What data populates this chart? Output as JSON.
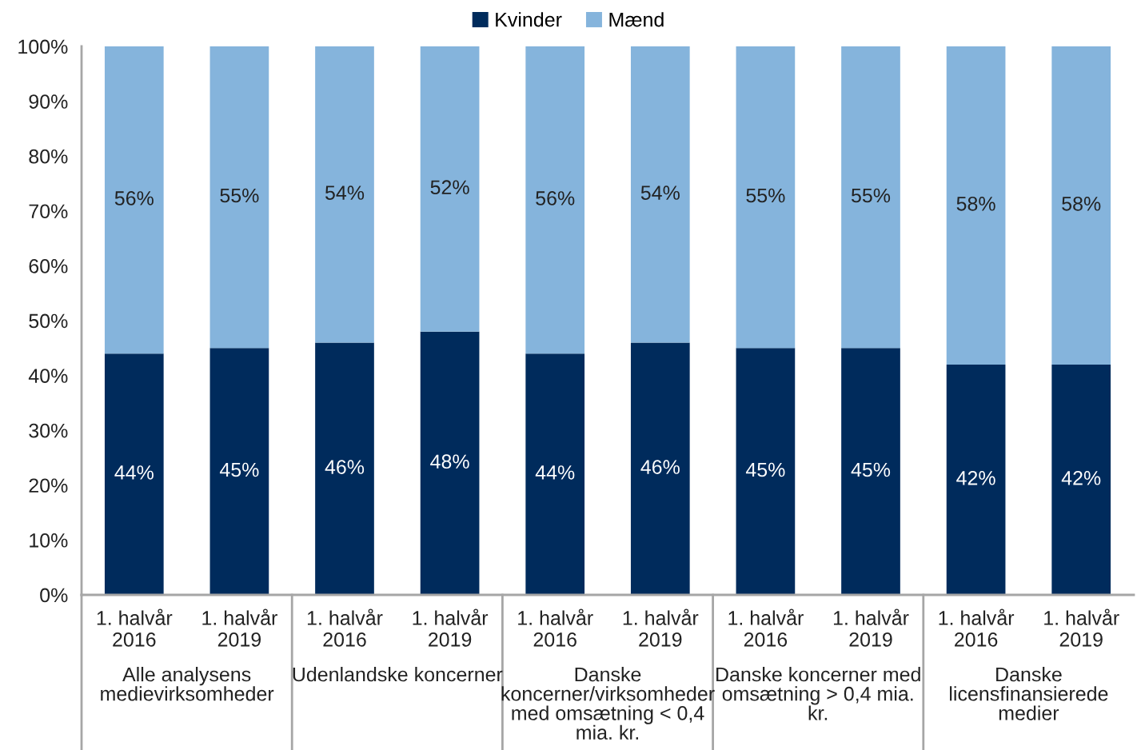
{
  "chart_data": {
    "type": "bar",
    "stacked": true,
    "categories": [
      "1. halvår\n2016",
      "1. halvår\n2019",
      "1. halvår\n2016",
      "1. halvår\n2019",
      "1. halvår\n2016",
      "1. halvår\n2019",
      "1. halvår\n2016",
      "1. halvår\n2019",
      "1. halvår\n2016",
      "1. halvår\n2019"
    ],
    "series": [
      {
        "name": "Kvinder",
        "color": "#002b5c",
        "values": [
          44,
          45,
          46,
          48,
          44,
          46,
          45,
          45,
          42,
          42
        ],
        "value_labels": [
          "44%",
          "45%",
          "46%",
          "48%",
          "44%",
          "46%",
          "45%",
          "45%",
          "42%",
          "42%"
        ]
      },
      {
        "name": "Mænd",
        "color": "#85b4dc",
        "values": [
          56,
          55,
          54,
          52,
          56,
          54,
          55,
          55,
          58,
          58
        ],
        "value_labels": [
          "56%",
          "55%",
          "54%",
          "52%",
          "56%",
          "54%",
          "55%",
          "55%",
          "58%",
          "58%"
        ]
      }
    ],
    "ylim": [
      0,
      100
    ],
    "yticks": [
      {
        "value": 0,
        "label": "0%"
      },
      {
        "value": 10,
        "label": "10%"
      },
      {
        "value": 20,
        "label": "20%"
      },
      {
        "value": 30,
        "label": "30%"
      },
      {
        "value": 40,
        "label": "40%"
      },
      {
        "value": 50,
        "label": "50%"
      },
      {
        "value": 60,
        "label": "60%"
      },
      {
        "value": 70,
        "label": "70%"
      },
      {
        "value": 80,
        "label": "80%"
      },
      {
        "value": 90,
        "label": "90%"
      },
      {
        "value": 100,
        "label": "100%"
      }
    ],
    "annotations": [
      "Alle analysens\nmedievirksomheder",
      "Udenlandske koncerner",
      "Danske\nkoncerner/virksomheder\nmed omsætning < 0,4\nmia. kr.",
      "Danske koncerner med\nomsætning > 0,4 mia.\nkr.",
      "Danske\nlicensfinansierede\nmedier"
    ],
    "legend": "top"
  }
}
